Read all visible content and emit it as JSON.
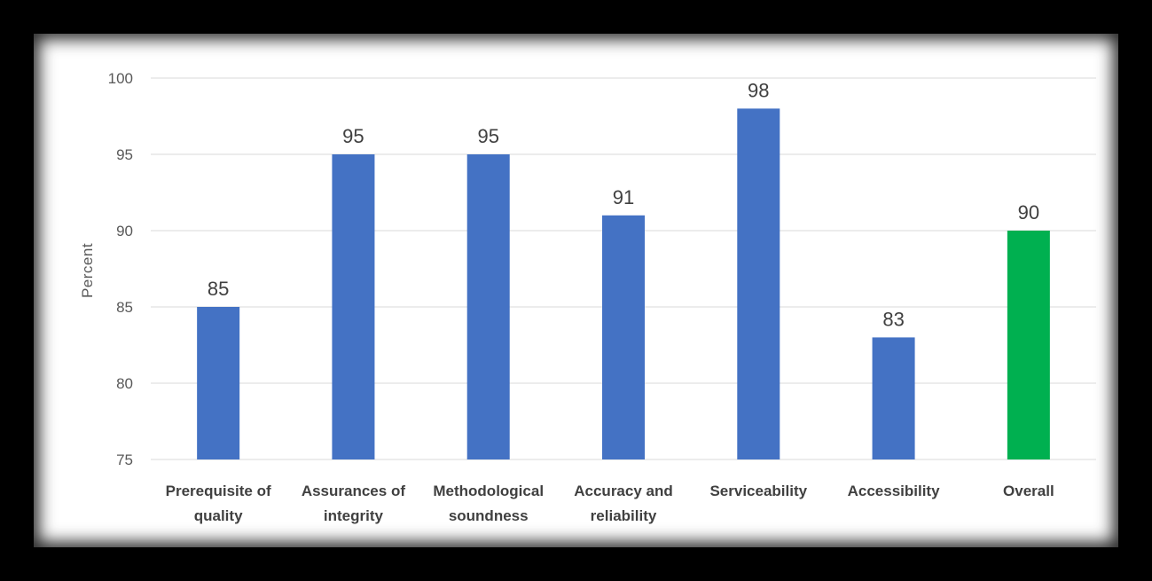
{
  "chart_data": {
    "type": "bar",
    "title": "",
    "xlabel": "",
    "ylabel": "Percent",
    "ylim": [
      75,
      100
    ],
    "yticks": [
      75,
      80,
      85,
      90,
      95,
      100
    ],
    "categories": [
      [
        "Prerequisite of",
        "quality"
      ],
      [
        "Assurances of",
        "integrity"
      ],
      [
        "Methodological",
        "soundness"
      ],
      [
        "Accuracy and",
        "reliability"
      ],
      [
        "Serviceability"
      ],
      [
        "Accessibility"
      ],
      [
        "Overall"
      ]
    ],
    "values": [
      85,
      95,
      95,
      91,
      98,
      83,
      90
    ],
    "colors": [
      "#4472C4",
      "#4472C4",
      "#4472C4",
      "#4472C4",
      "#4472C4",
      "#4472C4",
      "#00B050"
    ],
    "grid": true,
    "legend": "none"
  }
}
